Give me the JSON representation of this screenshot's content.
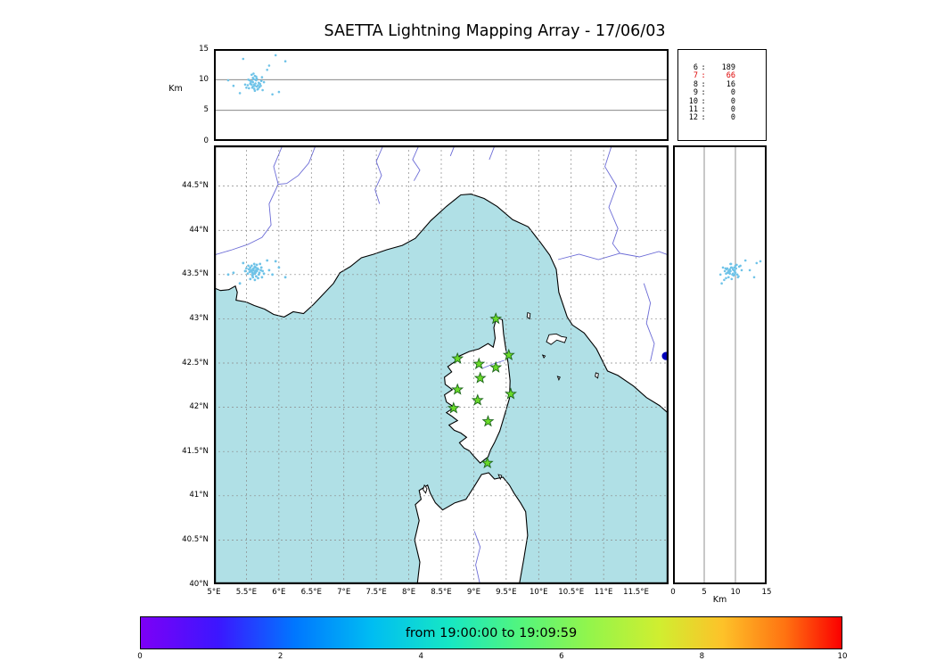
{
  "title": "SAETTA Lightning Mapping Array - 17/06/03",
  "labels": {
    "alt_unit_left": "Km",
    "alt_unit_bottom": "Km"
  },
  "colors": {
    "sea": "#b0e0e6",
    "land": "#ffffff",
    "coast": "#000000",
    "river": "#6b6bd6",
    "grid": "#8a8a8a",
    "point": "#6fc3e8",
    "star_fill": "#6ada28",
    "star_edge": "#1c641c",
    "edge_dot": "#0000bb",
    "alert_text": "#dd0000"
  },
  "colorbar": {
    "label": "from 19:00:00 to 19:09:59",
    "ticks": [
      "0",
      "2",
      "4",
      "6",
      "8",
      "10"
    ],
    "tick_values": [
      0,
      2,
      4,
      6,
      8,
      10
    ],
    "range": [
      0,
      10
    ],
    "stops": [
      {
        "p": 0,
        "c": "#7d00f6"
      },
      {
        "p": 11,
        "c": "#3c16ff"
      },
      {
        "p": 22,
        "c": "#0077ff"
      },
      {
        "p": 33,
        "c": "#00bdf2"
      },
      {
        "p": 44,
        "c": "#16e7c4"
      },
      {
        "p": 54,
        "c": "#52f57e"
      },
      {
        "p": 64,
        "c": "#93f54b"
      },
      {
        "p": 74,
        "c": "#d0ee30"
      },
      {
        "p": 83,
        "c": "#fdc229"
      },
      {
        "p": 92,
        "c": "#ff7211"
      },
      {
        "p": 100,
        "c": "#fb0000"
      }
    ]
  },
  "chart_data": {
    "type": "scatter",
    "title": "SAETTA Lightning Mapping Array - 17/06/03",
    "time_window": "from 19:00:00 to 19:09:59",
    "station_counts": [
      {
        "stations": "6",
        "sources": "189",
        "alert": false
      },
      {
        "stations": "7",
        "sources": "66",
        "alert": true
      },
      {
        "stations": "8",
        "sources": "16",
        "alert": false
      },
      {
        "stations": "9",
        "sources": "0",
        "alert": false
      },
      {
        "stations": "10",
        "sources": "0",
        "alert": false
      },
      {
        "stations": "11",
        "sources": "0",
        "alert": false
      },
      {
        "stations": "12",
        "sources": "0",
        "alert": false
      }
    ],
    "axes": {
      "map": {
        "lon_range": [
          5,
          12
        ],
        "lat_range": [
          40,
          44.96
        ],
        "lon_ticks": [
          {
            "v": 5,
            "label": "5°E"
          },
          {
            "v": 5.5,
            "label": "5.5°E"
          },
          {
            "v": 6,
            "label": "6°E"
          },
          {
            "v": 6.5,
            "label": "6.5°E"
          },
          {
            "v": 7,
            "label": "7°E"
          },
          {
            "v": 7.5,
            "label": "7.5°E"
          },
          {
            "v": 8,
            "label": "8°E"
          },
          {
            "v": 8.5,
            "label": "8.5°E"
          },
          {
            "v": 9,
            "label": "9°E"
          },
          {
            "v": 9.5,
            "label": "9.5°E"
          },
          {
            "v": 10,
            "label": "10°E"
          },
          {
            "v": 10.5,
            "label": "10.5°E"
          },
          {
            "v": 11,
            "label": "11°E"
          },
          {
            "v": 11.5,
            "label": "11.5°E"
          }
        ],
        "lat_ticks": [
          {
            "v": 40,
            "label": "40°N"
          },
          {
            "v": 40.5,
            "label": "40.5°N"
          },
          {
            "v": 41,
            "label": "41°N"
          },
          {
            "v": 41.5,
            "label": "41.5°N"
          },
          {
            "v": 42,
            "label": "42°N"
          },
          {
            "v": 42.5,
            "label": "42.5°N"
          },
          {
            "v": 43,
            "label": "43°N"
          },
          {
            "v": 43.5,
            "label": "43.5°N"
          },
          {
            "v": 44,
            "label": "44°N"
          },
          {
            "v": 44.5,
            "label": "44.5°N"
          }
        ]
      },
      "altitude": {
        "range_km": [
          0,
          15
        ],
        "ticks": [
          "0",
          "5",
          "10",
          "15"
        ],
        "tick_values": [
          0,
          5,
          10,
          15
        ],
        "gridlines": [
          5,
          10
        ],
        "unit": "Km"
      }
    },
    "stations_lon_lat": [
      [
        9.34,
        43.0
      ],
      [
        8.75,
        42.55
      ],
      [
        9.08,
        42.49
      ],
      [
        9.34,
        42.45
      ],
      [
        9.54,
        42.59
      ],
      [
        9.1,
        42.33
      ],
      [
        8.75,
        42.2
      ],
      [
        9.57,
        42.15
      ],
      [
        8.69,
        41.99
      ],
      [
        9.06,
        42.08
      ],
      [
        9.22,
        41.84
      ],
      [
        9.21,
        41.37
      ]
    ],
    "edge_point": {
      "lon": 11.96,
      "lat": 42.58
    },
    "points_lon_lat_altkm": [
      [
        5.58,
        43.54,
        9.2
      ],
      [
        5.6,
        43.56,
        9.6
      ],
      [
        5.63,
        43.53,
        9.0
      ],
      [
        5.65,
        43.55,
        9.9
      ],
      [
        5.61,
        43.57,
        10.1
      ],
      [
        5.59,
        43.52,
        8.7
      ],
      [
        5.64,
        43.58,
        9.4
      ],
      [
        5.66,
        43.54,
        8.9
      ],
      [
        5.57,
        43.55,
        9.7
      ],
      [
        5.62,
        43.51,
        8.5
      ],
      [
        5.6,
        43.5,
        10.3
      ],
      [
        5.68,
        43.56,
        9.1
      ],
      [
        5.55,
        43.53,
        9.9
      ],
      [
        5.63,
        43.59,
        10.6
      ],
      [
        5.7,
        43.52,
        8.8
      ],
      [
        5.56,
        43.58,
        9.3
      ],
      [
        5.61,
        43.55,
        11.0
      ],
      [
        5.67,
        43.57,
        8.4
      ],
      [
        5.59,
        43.49,
        9.7
      ],
      [
        5.72,
        43.55,
        9.0
      ],
      [
        5.64,
        43.52,
        10.0
      ],
      [
        5.54,
        43.56,
        8.6
      ],
      [
        5.69,
        43.5,
        9.5
      ],
      [
        5.58,
        43.6,
        10.8
      ],
      [
        5.62,
        43.62,
        9.2
      ],
      [
        5.75,
        43.54,
        8.3
      ],
      [
        5.52,
        43.51,
        9.1
      ],
      [
        5.66,
        43.61,
        10.2
      ],
      [
        5.6,
        43.47,
        8.9
      ],
      [
        5.73,
        43.58,
        9.8
      ],
      [
        5.56,
        43.45,
        9.4
      ],
      [
        5.65,
        43.48,
        10.5
      ],
      [
        5.5,
        43.57,
        8.7
      ],
      [
        5.71,
        43.62,
        9.3
      ],
      [
        5.63,
        43.44,
        8.2
      ],
      [
        5.77,
        43.51,
        9.6
      ],
      [
        5.53,
        43.6,
        10.0
      ],
      [
        5.68,
        43.46,
        8.5
      ],
      [
        5.48,
        43.54,
        9.2
      ],
      [
        5.74,
        43.47,
        10.4
      ],
      [
        5.85,
        43.55,
        12.3
      ],
      [
        5.45,
        43.63,
        13.4
      ],
      [
        5.9,
        43.5,
        7.6
      ],
      [
        5.3,
        43.52,
        9.0
      ],
      [
        6.0,
        43.58,
        8.0
      ],
      [
        5.95,
        43.65,
        14.0
      ],
      [
        6.1,
        43.47,
        13.0
      ],
      [
        5.4,
        43.4,
        7.8
      ],
      [
        5.22,
        43.5,
        9.9
      ],
      [
        5.82,
        43.66,
        11.6
      ]
    ]
  },
  "basemap": {
    "land": [
      [
        [
          5.0,
          43.35
        ],
        [
          5.1,
          43.32
        ],
        [
          5.23,
          43.33
        ],
        [
          5.33,
          43.37
        ],
        [
          5.36,
          43.3
        ],
        [
          5.34,
          43.21
        ],
        [
          5.5,
          43.19
        ],
        [
          5.62,
          43.15
        ],
        [
          5.78,
          43.11
        ],
        [
          5.92,
          43.05
        ],
        [
          6.08,
          43.02
        ],
        [
          6.22,
          43.08
        ],
        [
          6.38,
          43.06
        ],
        [
          6.53,
          43.16
        ],
        [
          6.66,
          43.26
        ],
        [
          6.84,
          43.4
        ],
        [
          6.94,
          43.52
        ],
        [
          7.1,
          43.59
        ],
        [
          7.27,
          43.69
        ],
        [
          7.46,
          43.73
        ],
        [
          7.66,
          43.78
        ],
        [
          7.9,
          43.83
        ],
        [
          8.1,
          43.91
        ],
        [
          8.34,
          44.11
        ],
        [
          8.58,
          44.27
        ],
        [
          8.8,
          44.4
        ],
        [
          8.96,
          44.41
        ],
        [
          9.16,
          44.36
        ],
        [
          9.36,
          44.27
        ],
        [
          9.6,
          44.12
        ],
        [
          9.84,
          44.04
        ],
        [
          10.02,
          43.87
        ],
        [
          10.17,
          43.72
        ],
        [
          10.27,
          43.56
        ],
        [
          10.31,
          43.3
        ],
        [
          10.44,
          43.02
        ],
        [
          10.52,
          42.93
        ],
        [
          10.7,
          42.84
        ],
        [
          10.89,
          42.66
        ],
        [
          11.06,
          42.41
        ],
        [
          11.22,
          42.36
        ],
        [
          11.46,
          42.24
        ],
        [
          11.66,
          42.11
        ],
        [
          11.86,
          42.02
        ],
        [
          12.0,
          41.93
        ],
        [
          12.0,
          44.96
        ],
        [
          5.0,
          44.96
        ]
      ],
      [
        [
          9.35,
          43.01
        ],
        [
          9.44,
          42.99
        ],
        [
          9.46,
          42.83
        ],
        [
          9.49,
          42.68
        ],
        [
          9.53,
          42.5
        ],
        [
          9.56,
          42.3
        ],
        [
          9.55,
          42.1
        ],
        [
          9.47,
          41.9
        ],
        [
          9.4,
          41.73
        ],
        [
          9.32,
          41.6
        ],
        [
          9.26,
          41.52
        ],
        [
          9.22,
          41.44
        ],
        [
          9.1,
          41.37
        ],
        [
          9.0,
          41.45
        ],
        [
          8.93,
          41.51
        ],
        [
          8.85,
          41.54
        ],
        [
          8.78,
          41.6
        ],
        [
          8.89,
          41.66
        ],
        [
          8.8,
          41.71
        ],
        [
          8.7,
          41.74
        ],
        [
          8.62,
          41.8
        ],
        [
          8.75,
          41.85
        ],
        [
          8.66,
          41.9
        ],
        [
          8.58,
          41.94
        ],
        [
          8.7,
          42.0
        ],
        [
          8.58,
          42.06
        ],
        [
          8.55,
          42.14
        ],
        [
          8.67,
          42.2
        ],
        [
          8.56,
          42.26
        ],
        [
          8.55,
          42.34
        ],
        [
          8.66,
          42.4
        ],
        [
          8.6,
          42.46
        ],
        [
          8.72,
          42.52
        ],
        [
          8.78,
          42.58
        ],
        [
          8.93,
          42.63
        ],
        [
          9.08,
          42.66
        ],
        [
          9.22,
          42.72
        ],
        [
          9.3,
          42.68
        ],
        [
          9.33,
          42.78
        ],
        [
          9.31,
          42.9
        ]
      ],
      [
        [
          8.13,
          39.99
        ],
        [
          8.17,
          40.25
        ],
        [
          8.09,
          40.5
        ],
        [
          8.16,
          40.72
        ],
        [
          8.1,
          40.9
        ],
        [
          8.19,
          40.96
        ],
        [
          8.16,
          41.06
        ],
        [
          8.29,
          41.12
        ],
        [
          8.33,
          41.03
        ],
        [
          8.41,
          40.92
        ],
        [
          8.52,
          40.84
        ],
        [
          8.71,
          40.92
        ],
        [
          8.88,
          40.96
        ],
        [
          9.02,
          41.12
        ],
        [
          9.12,
          41.24
        ],
        [
          9.23,
          41.26
        ],
        [
          9.32,
          41.19
        ],
        [
          9.45,
          41.21
        ],
        [
          9.55,
          41.12
        ],
        [
          9.62,
          41.03
        ],
        [
          9.72,
          40.92
        ],
        [
          9.8,
          40.82
        ],
        [
          9.83,
          40.55
        ],
        [
          9.77,
          40.28
        ],
        [
          9.7,
          39.99
        ]
      ]
    ],
    "islands": [
      [
        [
          10.12,
          42.74
        ],
        [
          10.16,
          42.82
        ],
        [
          10.27,
          42.83
        ],
        [
          10.35,
          42.8
        ],
        [
          10.43,
          42.79
        ],
        [
          10.4,
          42.73
        ],
        [
          10.28,
          42.76
        ],
        [
          10.19,
          42.71
        ]
      ],
      [
        [
          9.83,
          43.07
        ],
        [
          9.87,
          43.06
        ],
        [
          9.86,
          43.0
        ],
        [
          9.82,
          43.02
        ]
      ],
      [
        [
          10.88,
          42.39
        ],
        [
          10.92,
          42.38
        ],
        [
          10.91,
          42.33
        ],
        [
          10.87,
          42.35
        ]
      ],
      [
        [
          10.29,
          42.35
        ],
        [
          10.33,
          42.34
        ],
        [
          10.31,
          42.31
        ]
      ],
      [
        [
          10.06,
          42.59
        ],
        [
          10.1,
          42.58
        ],
        [
          10.08,
          42.56
        ]
      ],
      [
        [
          8.24,
          41.12
        ],
        [
          8.28,
          41.08
        ],
        [
          8.26,
          41.03
        ],
        [
          8.22,
          41.07
        ]
      ],
      [
        [
          9.38,
          41.24
        ],
        [
          9.43,
          41.23
        ],
        [
          9.41,
          41.19
        ]
      ]
    ],
    "rivers": [
      [
        [
          6.05,
          44.95
        ],
        [
          5.92,
          44.72
        ],
        [
          5.99,
          44.52
        ],
        [
          5.85,
          44.3
        ],
        [
          5.88,
          44.06
        ],
        [
          5.74,
          43.92
        ],
        [
          5.52,
          43.84
        ],
        [
          5.28,
          43.78
        ],
        [
          5.0,
          43.72
        ]
      ],
      [
        [
          6.56,
          44.95
        ],
        [
          6.46,
          44.76
        ],
        [
          6.3,
          44.62
        ],
        [
          6.12,
          44.53
        ],
        [
          5.99,
          44.52
        ]
      ],
      [
        [
          7.6,
          44.95
        ],
        [
          7.5,
          44.78
        ],
        [
          7.58,
          44.62
        ],
        [
          7.48,
          44.46
        ],
        [
          7.55,
          44.3
        ]
      ],
      [
        [
          8.15,
          44.95
        ],
        [
          8.06,
          44.8
        ],
        [
          8.17,
          44.68
        ],
        [
          8.08,
          44.56
        ]
      ],
      [
        [
          8.7,
          44.95
        ],
        [
          8.64,
          44.84
        ]
      ],
      [
        [
          9.32,
          44.95
        ],
        [
          9.24,
          44.8
        ]
      ],
      [
        [
          10.3,
          43.67
        ],
        [
          10.62,
          43.73
        ],
        [
          10.92,
          43.67
        ],
        [
          11.25,
          43.74
        ],
        [
          11.55,
          43.7
        ],
        [
          11.85,
          43.76
        ],
        [
          12.0,
          43.72
        ]
      ],
      [
        [
          11.12,
          44.95
        ],
        [
          11.02,
          44.72
        ],
        [
          11.2,
          44.5
        ],
        [
          11.08,
          44.26
        ],
        [
          11.22,
          44.02
        ],
        [
          11.14,
          43.85
        ],
        [
          11.25,
          43.74
        ]
      ],
      [
        [
          11.62,
          43.4
        ],
        [
          11.72,
          43.18
        ],
        [
          11.66,
          42.95
        ],
        [
          11.78,
          42.72
        ],
        [
          11.72,
          42.52
        ]
      ],
      [
        [
          9.1,
          39.99
        ],
        [
          9.03,
          40.22
        ],
        [
          9.1,
          40.42
        ],
        [
          9.01,
          40.6
        ]
      ],
      [
        [
          9.13,
          42.44
        ],
        [
          9.3,
          42.49
        ],
        [
          9.47,
          42.53
        ]
      ]
    ]
  }
}
